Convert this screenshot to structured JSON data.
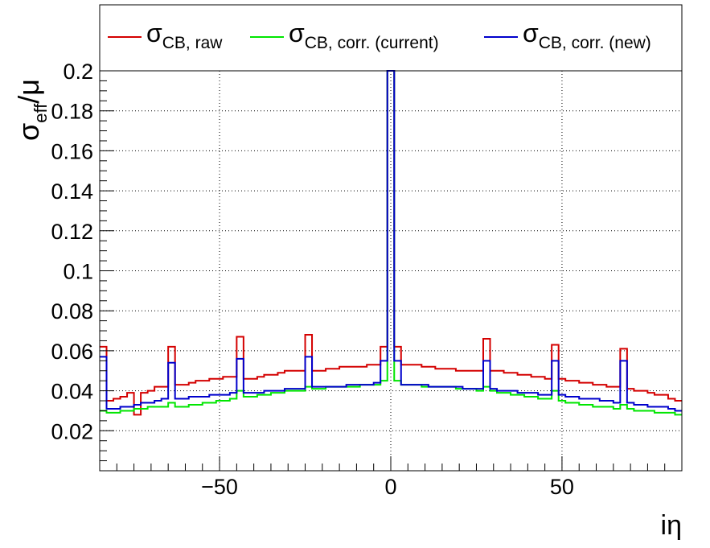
{
  "chart_data": {
    "type": "line",
    "style": "step-histogram",
    "xlim": [
      -85,
      85
    ],
    "ylim": [
      0,
      0.2
    ],
    "xlabel_main": "iη",
    "ylabel_main": "σ",
    "ylabel_sub": "eff",
    "ylabel_tail": "/μ",
    "grid": true,
    "legend_position": "top",
    "x_ticks": [
      -50,
      0,
      50
    ],
    "x_tick_labels": [
      "−50",
      "0",
      "50"
    ],
    "y_ticks": [
      0.02,
      0.04,
      0.06,
      0.08,
      0.1,
      0.12,
      0.14,
      0.16,
      0.18,
      0.2
    ],
    "y_tick_labels": [
      "0.02",
      "0.04",
      "0.06",
      "0.08",
      "0.1",
      "0.12",
      "0.14",
      "0.16",
      "0.18",
      "0.2"
    ],
    "bin_edges": [
      -85,
      -83,
      -81,
      -79,
      -77,
      -75,
      -73,
      -71,
      -69,
      -67,
      -65,
      -63,
      -61,
      -59,
      -57,
      -55,
      -53,
      -51,
      -49,
      -47,
      -45,
      -43,
      -41,
      -39,
      -37,
      -35,
      -33,
      -31,
      -29,
      -27,
      -25,
      -23,
      -21,
      -19,
      -17,
      -15,
      -13,
      -11,
      -9,
      -7,
      -5,
      -3,
      -1,
      1,
      3,
      5,
      7,
      9,
      11,
      13,
      15,
      17,
      19,
      21,
      23,
      25,
      27,
      29,
      31,
      33,
      35,
      37,
      39,
      41,
      43,
      45,
      47,
      49,
      51,
      53,
      55,
      57,
      59,
      61,
      63,
      65,
      67,
      69,
      71,
      73,
      75,
      77,
      79,
      81,
      83,
      85
    ],
    "series": [
      {
        "name": "σ",
        "name_sub": "CB, raw",
        "color": "#d40000",
        "values": [
          0.062,
          0.035,
          0.036,
          0.037,
          0.039,
          0.028,
          0.039,
          0.04,
          0.042,
          0.042,
          0.062,
          0.043,
          0.043,
          0.044,
          0.045,
          0.045,
          0.046,
          0.046,
          0.047,
          0.047,
          0.067,
          0.046,
          0.046,
          0.047,
          0.048,
          0.048,
          0.049,
          0.05,
          0.05,
          0.05,
          0.068,
          0.05,
          0.05,
          0.051,
          0.051,
          0.052,
          0.052,
          0.052,
          0.052,
          0.053,
          0.053,
          0.062,
          0.2,
          0.062,
          0.053,
          0.053,
          0.053,
          0.052,
          0.052,
          0.051,
          0.051,
          0.051,
          0.05,
          0.05,
          0.05,
          0.05,
          0.066,
          0.05,
          0.05,
          0.049,
          0.049,
          0.048,
          0.048,
          0.047,
          0.047,
          0.046,
          0.063,
          0.046,
          0.045,
          0.045,
          0.044,
          0.044,
          0.043,
          0.043,
          0.042,
          0.042,
          0.061,
          0.041,
          0.04,
          0.04,
          0.039,
          0.038,
          0.038,
          0.036,
          0.035
        ]
      },
      {
        "name": "σ",
        "name_sub": "CB, corr. (current)",
        "color": "#00e600",
        "values": [
          0.03,
          0.029,
          0.029,
          0.03,
          0.03,
          0.031,
          0.031,
          0.032,
          0.032,
          0.032,
          0.034,
          0.032,
          0.032,
          0.033,
          0.033,
          0.034,
          0.034,
          0.035,
          0.035,
          0.036,
          0.04,
          0.037,
          0.037,
          0.038,
          0.038,
          0.039,
          0.039,
          0.04,
          0.04,
          0.04,
          0.042,
          0.041,
          0.041,
          0.042,
          0.042,
          0.042,
          0.042,
          0.042,
          0.043,
          0.043,
          0.043,
          0.045,
          0.2,
          0.045,
          0.043,
          0.043,
          0.043,
          0.042,
          0.042,
          0.042,
          0.042,
          0.042,
          0.041,
          0.041,
          0.041,
          0.04,
          0.042,
          0.04,
          0.039,
          0.039,
          0.038,
          0.038,
          0.037,
          0.037,
          0.036,
          0.036,
          0.04,
          0.035,
          0.034,
          0.034,
          0.033,
          0.033,
          0.032,
          0.032,
          0.032,
          0.031,
          0.033,
          0.031,
          0.03,
          0.03,
          0.03,
          0.029,
          0.029,
          0.029,
          0.028
        ]
      },
      {
        "name": "σ",
        "name_sub": "CB, corr. (new)",
        "color": "#0000cc",
        "values": [
          0.057,
          0.031,
          0.031,
          0.032,
          0.032,
          0.033,
          0.034,
          0.034,
          0.035,
          0.036,
          0.054,
          0.036,
          0.036,
          0.037,
          0.037,
          0.037,
          0.038,
          0.038,
          0.038,
          0.039,
          0.056,
          0.039,
          0.039,
          0.039,
          0.04,
          0.04,
          0.04,
          0.041,
          0.041,
          0.041,
          0.057,
          0.042,
          0.042,
          0.042,
          0.042,
          0.042,
          0.043,
          0.043,
          0.043,
          0.043,
          0.044,
          0.055,
          0.2,
          0.055,
          0.043,
          0.043,
          0.043,
          0.043,
          0.042,
          0.042,
          0.042,
          0.042,
          0.042,
          0.041,
          0.041,
          0.041,
          0.055,
          0.041,
          0.04,
          0.04,
          0.04,
          0.039,
          0.039,
          0.039,
          0.038,
          0.038,
          0.055,
          0.038,
          0.037,
          0.037,
          0.036,
          0.036,
          0.036,
          0.035,
          0.035,
          0.034,
          0.055,
          0.034,
          0.033,
          0.033,
          0.032,
          0.032,
          0.032,
          0.031,
          0.03
        ]
      }
    ]
  }
}
